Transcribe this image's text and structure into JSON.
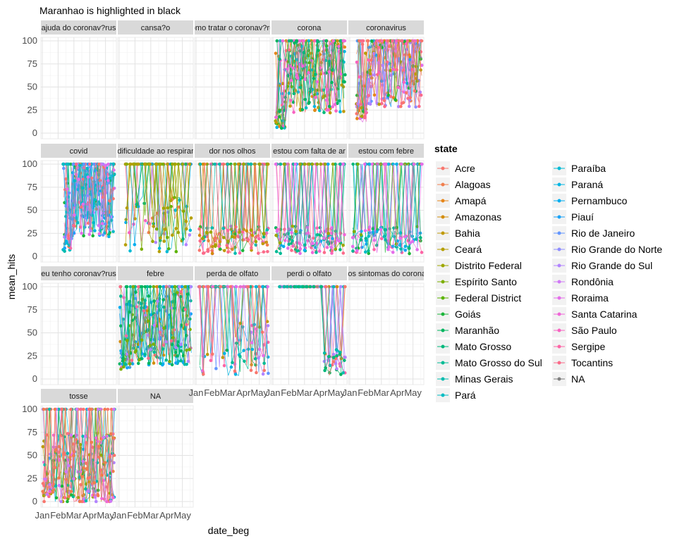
{
  "chart_data": {
    "type": "line",
    "title": "Maranhao is highlighted in black",
    "xlabel": "date_beg",
    "ylabel": "mean_hits",
    "x_tick_labels": [
      "Jan",
      "Feb",
      "Mar",
      "Apr",
      "May"
    ],
    "y_tick_labels": [
      "0",
      "25",
      "50",
      "75",
      "100"
    ],
    "ylim": [
      0,
      100
    ],
    "grid": true,
    "legend": {
      "title": "state",
      "placement": "right",
      "entries": [
        {
          "name": "Acre",
          "color": "#F8766D"
        },
        {
          "name": "Alagoas",
          "color": "#F07E4D"
        },
        {
          "name": "Amapá",
          "color": "#E6861A"
        },
        {
          "name": "Amazonas",
          "color": "#D38D0D"
        },
        {
          "name": "Bahia",
          "color": "#C09A0C"
        },
        {
          "name": "Ceará",
          "color": "#B59F00"
        },
        {
          "name": "Distrito Federal",
          "color": "#9EA700"
        },
        {
          "name": "Espírito Santo",
          "color": "#7CAE00"
        },
        {
          "name": "Federal District",
          "color": "#5BB300"
        },
        {
          "name": "Goiás",
          "color": "#1CB53B"
        },
        {
          "name": "Maranhão",
          "color": "#00B55F"
        },
        {
          "name": "Mato Grosso",
          "color": "#00B87B"
        },
        {
          "name": "Mato Grosso do Sul",
          "color": "#00BB95"
        },
        {
          "name": "Minas Gerais",
          "color": "#00BBAE"
        },
        {
          "name": "Pará",
          "color": "#00BCC3"
        },
        {
          "name": "Paraíba",
          "color": "#00BAD4"
        },
        {
          "name": "Paraná",
          "color": "#00B5E3"
        },
        {
          "name": "Pernambuco",
          "color": "#00AEF0"
        },
        {
          "name": "Piauí",
          "color": "#1AA3F8"
        },
        {
          "name": "Rio de Janeiro",
          "color": "#6396FF"
        },
        {
          "name": "Rio Grande do Norte",
          "color": "#8F8DFF"
        },
        {
          "name": "Rio Grande do Sul",
          "color": "#B284FF"
        },
        {
          "name": "Rondônia",
          "color": "#D079F7"
        },
        {
          "name": "Roraima",
          "color": "#E46EEA"
        },
        {
          "name": "Santa Catarina",
          "color": "#F067D8"
        },
        {
          "name": "São Paulo",
          "color": "#F863C1"
        },
        {
          "name": "Sergipe",
          "color": "#FD65A6"
        },
        {
          "name": "Tocantins",
          "color": "#FB6B8A"
        },
        {
          "name": "NA",
          "color": "#7F7F7F"
        }
      ]
    },
    "panels": [
      {
        "label": "ajuda do coronav?rus",
        "pattern": "none"
      },
      {
        "label": "cansa?o",
        "pattern": "none"
      },
      {
        "label": "como tratar o coronav?rus",
        "pattern": "none"
      },
      {
        "label": "corona",
        "pattern": "dense",
        "x_start": 0.05,
        "x_end": 0.98,
        "low": 5,
        "mid": 62
      },
      {
        "label": "coronavirus",
        "pattern": "dense",
        "x_start": 0.1,
        "x_end": 0.98,
        "low": 12,
        "mid": 68
      },
      {
        "label": "covid",
        "pattern": "dense",
        "x_start": 0.3,
        "x_end": 0.98,
        "low": 5,
        "mid": 60
      },
      {
        "label": "dificuldade ao respirar",
        "pattern": "sparse",
        "x_start": 0.1,
        "x_end": 0.98,
        "low": 5,
        "mid": 40
      },
      {
        "label": "dor nos olhos",
        "pattern": "spiky",
        "x_start": 0.05,
        "x_end": 0.98,
        "low": 3,
        "mid": 20
      },
      {
        "label": "estou com falta de ar",
        "pattern": "spiky",
        "x_start": 0.05,
        "x_end": 0.98,
        "low": 3,
        "mid": 18
      },
      {
        "label": "estou com febre",
        "pattern": "spiky",
        "x_start": 0.05,
        "x_end": 0.98,
        "low": 3,
        "mid": 22
      },
      {
        "label": "eu tenho coronav?rus",
        "pattern": "none"
      },
      {
        "label": "febre",
        "pattern": "dense",
        "x_start": 0.02,
        "x_end": 0.98,
        "low": 10,
        "mid": 55
      },
      {
        "label": "perda de olfato",
        "pattern": "late",
        "x_start": 0.05,
        "x_end": 0.98,
        "low": 3,
        "mid": 30
      },
      {
        "label": "perdi o olfato",
        "pattern": "late2",
        "x_start": 0.1,
        "x_end": 0.98,
        "low": 3,
        "mid": 15
      },
      {
        "label": "quais os sintomas do coronav?rus",
        "pattern": "none"
      },
      {
        "label": "tosse",
        "pattern": "dense",
        "x_start": 0.02,
        "x_end": 0.98,
        "low": 5,
        "mid": 35
      },
      {
        "label": "NA",
        "pattern": "none"
      }
    ]
  }
}
